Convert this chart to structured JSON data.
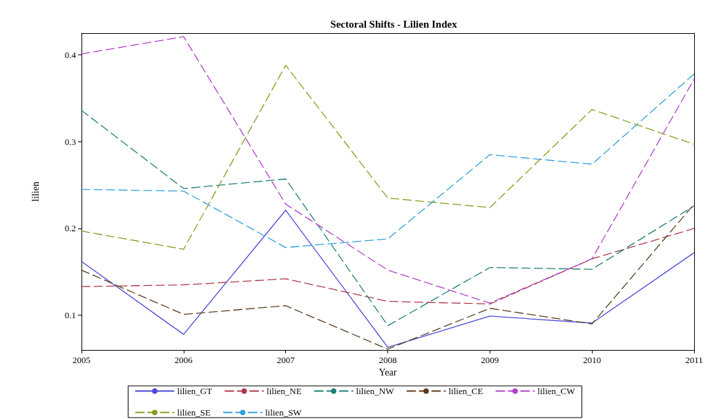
{
  "chart_data": {
    "type": "line",
    "title": "Sectoral Shifts - Lilien Index",
    "xlabel": "Year",
    "ylabel": "lilien",
    "x": [
      2005,
      2006,
      2007,
      2008,
      2009,
      2010,
      2011
    ],
    "xlim": [
      2005,
      2011
    ],
    "xticks": [
      2005,
      2006,
      2007,
      2008,
      2009,
      2010,
      2011
    ],
    "ylim": [
      0.06,
      0.425
    ],
    "yticks": [
      0.1,
      0.2,
      0.3,
      0.4
    ],
    "grid": false,
    "legend": "bottom",
    "marker": "none",
    "series": [
      {
        "name": "lilien_GT",
        "color": "#4a4ad6",
        "line_style": "solid",
        "values": [
          0.162,
          0.078,
          0.221,
          0.063,
          0.099,
          0.091,
          0.172
        ]
      },
      {
        "name": "lilien_NE",
        "color": "#b03848",
        "line_style": "dashed",
        "values": [
          0.133,
          0.135,
          0.142,
          0.116,
          0.113,
          0.165,
          0.2
        ]
      },
      {
        "name": "lilien_NW",
        "color": "#1f7f7a",
        "line_style": "dashed",
        "values": [
          0.336,
          0.246,
          0.257,
          0.088,
          0.155,
          0.153,
          0.226
        ]
      },
      {
        "name": "lilien_CE",
        "color": "#5c3c1c",
        "line_style": "dashed",
        "values": [
          0.152,
          0.101,
          0.111,
          0.061,
          0.108,
          0.09,
          0.228
        ]
      },
      {
        "name": "lilien_CW",
        "color": "#b040c8",
        "line_style": "dashed",
        "values": [
          0.401,
          0.421,
          0.228,
          0.152,
          0.114,
          0.165,
          0.372
        ]
      },
      {
        "name": "lilien_SE",
        "color": "#8a9a20",
        "line_style": "dashed",
        "values": [
          0.197,
          0.176,
          0.388,
          0.235,
          0.224,
          0.337,
          0.297
        ]
      },
      {
        "name": "lilien_SW",
        "color": "#30a0d8",
        "line_style": "dashed",
        "values": [
          0.245,
          0.243,
          0.178,
          0.188,
          0.285,
          0.274,
          0.378
        ]
      }
    ]
  }
}
